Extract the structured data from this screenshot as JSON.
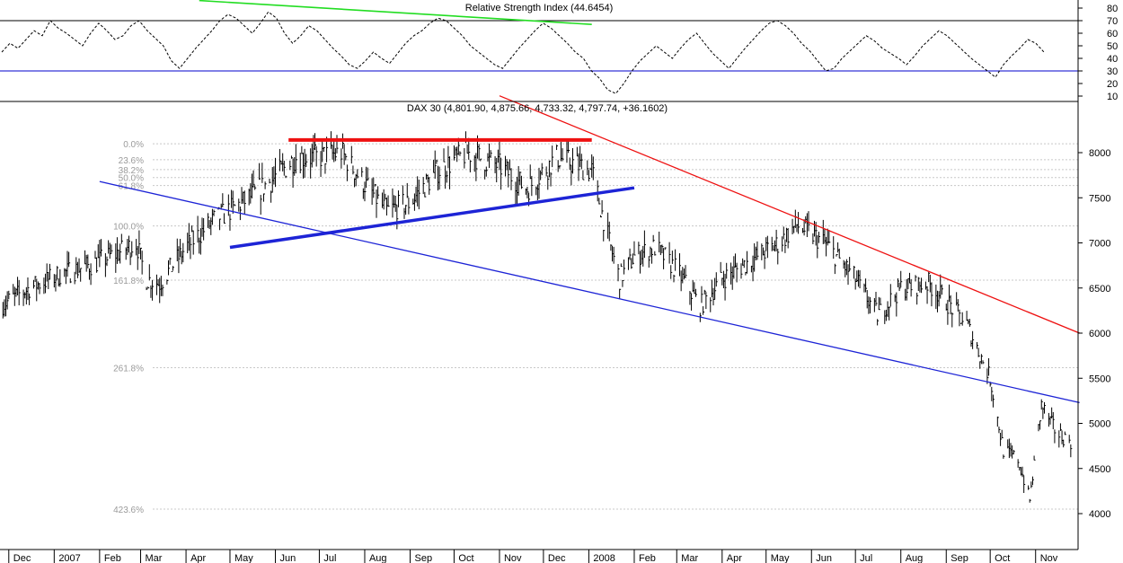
{
  "colors": {
    "background": "#ffffff",
    "axis": "#000000",
    "grid": "#c8c8c8",
    "fib_text": "#9a9a9a",
    "price": "#000000",
    "rsi": "#000000",
    "rsi_levels": "#0000cc",
    "trend_red": "#ee1111",
    "trend_blue": "#1d24d6",
    "trend_green": "#22dd22"
  },
  "chart_data": [
    {
      "type": "line",
      "title": "Relative Strength Index (44.6454)",
      "ylim": [
        5,
        88
      ],
      "y_ticks": [
        10,
        20,
        30,
        40,
        50,
        60,
        70,
        80
      ],
      "reference_lines": [
        30,
        70
      ],
      "series": [
        {
          "values": [
            45,
            52,
            48,
            55,
            62,
            58,
            70,
            64,
            60,
            55,
            50,
            60,
            68,
            62,
            55,
            58,
            66,
            70,
            62,
            56,
            50,
            38,
            32,
            40,
            48,
            55,
            62,
            70,
            75,
            72,
            66,
            60,
            68,
            77,
            72,
            60,
            52,
            58,
            66,
            62,
            55,
            48,
            42,
            35,
            32,
            38,
            45,
            40,
            36,
            44,
            52,
            58,
            62,
            68,
            72,
            70,
            64,
            58,
            50,
            45,
            40,
            35,
            32,
            40,
            48,
            55,
            62,
            68,
            64,
            58,
            52,
            45,
            40,
            30,
            24,
            15,
            12,
            20,
            30,
            38,
            44,
            50,
            45,
            40,
            48,
            55,
            60,
            52,
            44,
            38,
            32,
            40,
            48,
            55,
            62,
            68,
            70,
            66,
            60,
            52,
            46,
            38,
            30,
            32,
            40,
            46,
            52,
            58,
            54,
            48,
            44,
            40,
            35,
            42,
            50,
            56,
            62,
            58,
            52,
            46,
            40,
            35,
            30,
            25,
            35,
            42,
            48,
            55,
            52,
            45
          ]
        }
      ],
      "trendlines": [
        {
          "color": "#22dd22",
          "points": [
            [
              "2007-04-10",
              86
            ],
            [
              "2008-01-03",
              67
            ]
          ]
        }
      ]
    },
    {
      "type": "line",
      "title": "DAX 30 (4,801.90, 4,875.66, 4,733.32, 4,797.74, +36.1602)",
      "style": "ohlc_bars_daily",
      "ylim": [
        3800,
        8300
      ],
      "y_ticks": [
        4000,
        4500,
        5000,
        5500,
        6000,
        6500,
        7000,
        7500,
        8000
      ],
      "x_labels": [
        "Dec",
        "2007",
        "Feb",
        "Mar",
        "Apr",
        "May",
        "Jun",
        "Jul",
        "Aug",
        "Sep",
        "Oct",
        "Nov",
        "Dec",
        "2008",
        "Feb",
        "Mar",
        "Apr",
        "May",
        "Jun",
        "Jul",
        "Aug",
        "Sep",
        "Oct",
        "Nov"
      ],
      "x_range": [
        "2006-11-25",
        "2008-11-30"
      ],
      "series": [
        {
          "x": [
            "2006-11-25",
            "2006-12-15",
            "2007-01-05",
            "2007-01-25",
            "2007-02-15",
            "2007-02-26",
            "2007-03-05",
            "2007-03-14",
            "2007-04-01",
            "2007-04-20",
            "2007-05-10",
            "2007-05-30",
            "2007-06-15",
            "2007-07-01",
            "2007-07-16",
            "2007-08-01",
            "2007-08-16",
            "2007-09-01",
            "2007-09-20",
            "2007-10-10",
            "2007-11-01",
            "2007-11-20",
            "2007-12-10",
            "2008-01-03",
            "2008-01-15",
            "2008-01-22",
            "2008-02-01",
            "2008-02-15",
            "2008-03-01",
            "2008-03-17",
            "2008-04-01",
            "2008-04-20",
            "2008-05-10",
            "2008-05-22",
            "2008-06-10",
            "2008-07-01",
            "2008-07-16",
            "2008-08-01",
            "2008-08-20",
            "2008-09-01",
            "2008-09-15",
            "2008-10-01",
            "2008-10-10",
            "2008-10-20",
            "2008-10-28",
            "2008-11-05",
            "2008-11-15",
            "2008-11-25"
          ],
          "values": [
            6300,
            6500,
            6650,
            6750,
            6900,
            7000,
            6600,
            6550,
            6950,
            7250,
            7450,
            7700,
            7950,
            7950,
            8000,
            7650,
            7350,
            7450,
            7800,
            8000,
            7850,
            7600,
            7950,
            7800,
            7000,
            6600,
            6850,
            6950,
            6700,
            6300,
            6600,
            6800,
            7000,
            7200,
            7000,
            6600,
            6200,
            6500,
            6550,
            6350,
            6100,
            5500,
            4700,
            4600,
            4150,
            5200,
            4900,
            4800
          ]
        }
      ],
      "fibonacci_levels": [
        {
          "label": "0.0%",
          "value": 8098
        },
        {
          "label": "23.6%",
          "value": 7922
        },
        {
          "label": "38.2%",
          "value": 7812
        },
        {
          "label": "50.0%",
          "value": 7724
        },
        {
          "label": "61.8%",
          "value": 7636
        },
        {
          "label": "100.0%",
          "value": 7188
        },
        {
          "label": "161.8%",
          "value": 6587
        },
        {
          "label": "261.8%",
          "value": 5617
        },
        {
          "label": "423.6%",
          "value": 4050
        }
      ],
      "trendlines": [
        {
          "color": "#ee1111",
          "points": [
            [
              "2007-06-10",
              8140
            ],
            [
              "2008-01-03",
              8140
            ]
          ]
        },
        {
          "color": "#ee1111",
          "points": [
            [
              "2007-11-01",
              8630
            ],
            [
              "2008-12-01",
              6000
            ]
          ]
        },
        {
          "color": "#1d24d6",
          "points": [
            [
              "2007-02-01",
              7680
            ],
            [
              "2008-12-01",
              5230
            ]
          ]
        },
        {
          "color": "#1d24d6",
          "points": [
            [
              "2007-05-01",
              6950
            ],
            [
              "2008-02-01",
              7610
            ]
          ]
        }
      ]
    }
  ]
}
